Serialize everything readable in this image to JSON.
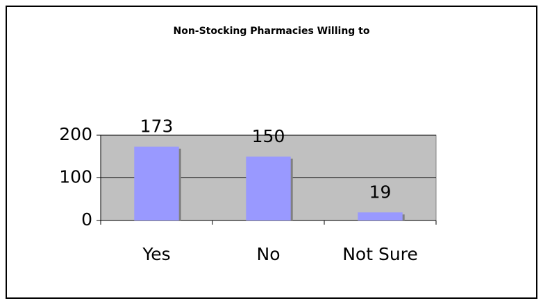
{
  "chart_data": {
    "type": "bar",
    "title": "Non-Stocking Pharmacies Willing to",
    "categories": [
      "Yes",
      "No",
      "Not Sure"
    ],
    "values": [
      173,
      150,
      19
    ],
    "color": "#9999ff",
    "ylim": [
      0,
      200
    ],
    "yticks": [
      0,
      100,
      200
    ],
    "grid": true
  }
}
